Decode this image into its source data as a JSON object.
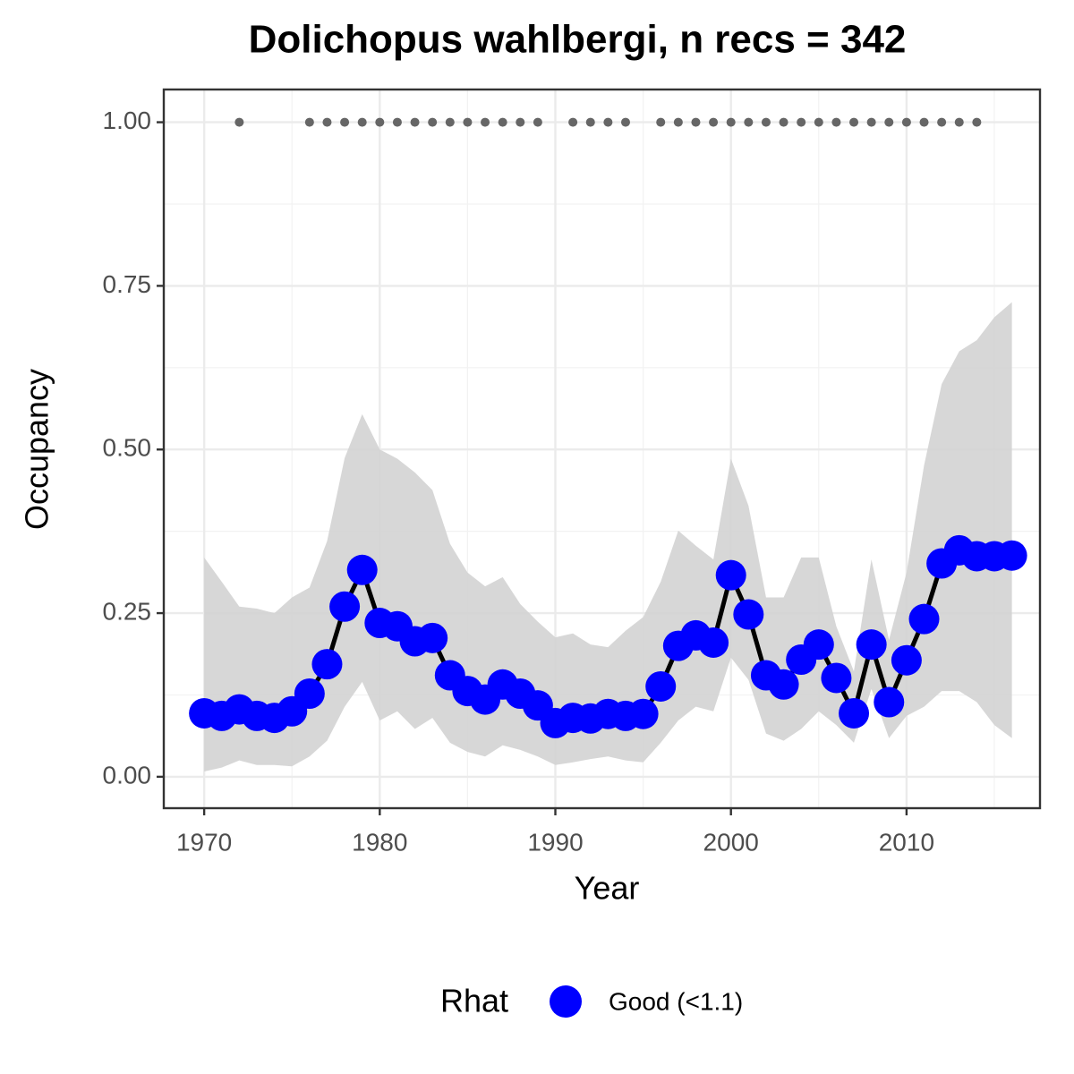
{
  "chart_data": {
    "type": "line",
    "title": "Dolichopus wahlbergi, n recs = 342",
    "x_label": "Year",
    "y_label": "Occupancy",
    "x": [
      1970,
      1971,
      1972,
      1973,
      1974,
      1975,
      1976,
      1977,
      1978,
      1979,
      1980,
      1981,
      1982,
      1983,
      1984,
      1985,
      1986,
      1987,
      1988,
      1989,
      1990,
      1991,
      1992,
      1993,
      1994,
      1995,
      1996,
      1997,
      1998,
      1999,
      2000,
      2001,
      2002,
      2003,
      2004,
      2005,
      2006,
      2007,
      2008,
      2009,
      2010,
      2011,
      2012,
      2013,
      2014,
      2015,
      2016
    ],
    "series": [
      {
        "name": "Good (<1.1)",
        "color": "#0000ff",
        "line_color": "#000000",
        "values": [
          0.097,
          0.093,
          0.103,
          0.093,
          0.09,
          0.1,
          0.127,
          0.172,
          0.26,
          0.316,
          0.235,
          0.23,
          0.207,
          0.212,
          0.155,
          0.131,
          0.118,
          0.141,
          0.127,
          0.109,
          0.082,
          0.09,
          0.089,
          0.096,
          0.093,
          0.096,
          0.138,
          0.2,
          0.216,
          0.205,
          0.308,
          0.248,
          0.155,
          0.141,
          0.179,
          0.202,
          0.151,
          0.097,
          0.202,
          0.114,
          0.178,
          0.241,
          0.326,
          0.346,
          0.337,
          0.337,
          0.338
        ],
        "lower": [
          0.008,
          0.014,
          0.025,
          0.018,
          0.018,
          0.016,
          0.031,
          0.055,
          0.107,
          0.145,
          0.086,
          0.1,
          0.073,
          0.09,
          0.052,
          0.038,
          0.031,
          0.048,
          0.041,
          0.031,
          0.018,
          0.022,
          0.027,
          0.031,
          0.025,
          0.022,
          0.052,
          0.086,
          0.107,
          0.1,
          0.182,
          0.148,
          0.066,
          0.055,
          0.073,
          0.1,
          0.079,
          0.052,
          0.134,
          0.059,
          0.093,
          0.107,
          0.131,
          0.131,
          0.114,
          0.079,
          0.059
        ],
        "upper": [
          0.335,
          0.298,
          0.26,
          0.257,
          0.25,
          0.274,
          0.289,
          0.36,
          0.487,
          0.554,
          0.5,
          0.486,
          0.465,
          0.438,
          0.356,
          0.312,
          0.291,
          0.305,
          0.264,
          0.237,
          0.213,
          0.219,
          0.202,
          0.198,
          0.223,
          0.244,
          0.298,
          0.376,
          0.353,
          0.332,
          0.486,
          0.414,
          0.274,
          0.274,
          0.335,
          0.335,
          0.23,
          0.161,
          0.332,
          0.209,
          0.312,
          0.476,
          0.6,
          0.65,
          0.667,
          0.702,
          0.725
        ]
      }
    ],
    "band_color": "#d3d3d3",
    "records": {
      "color": "#666666",
      "x": [
        1972,
        1976,
        1977,
        1978,
        1979,
        1980,
        1981,
        1982,
        1983,
        1984,
        1985,
        1986,
        1987,
        1988,
        1989,
        1991,
        1992,
        1993,
        1994,
        1996,
        1997,
        1998,
        1999,
        2000,
        2001,
        2002,
        2003,
        2004,
        2005,
        2006,
        2007,
        2008,
        2009,
        2010,
        2011,
        2012,
        2013,
        2014
      ],
      "values": [
        1,
        1,
        1,
        1,
        1,
        1,
        1,
        1,
        1,
        1,
        1,
        1,
        1,
        1,
        1,
        1,
        1,
        1,
        1,
        1,
        1,
        1,
        1,
        1,
        1,
        1,
        1,
        1,
        1,
        1,
        1,
        1,
        1,
        1,
        1,
        1,
        1,
        1
      ]
    },
    "xlim": [
      1967.7,
      2017.6
    ],
    "ylim": [
      -0.048,
      1.05
    ],
    "xticks": [
      1970,
      1980,
      1990,
      2000,
      2010
    ],
    "yticks": [
      {
        "value": 0,
        "label": "0.00"
      },
      {
        "value": 0.25,
        "label": "0.25"
      },
      {
        "value": 0.5,
        "label": "0.50"
      },
      {
        "value": 0.75,
        "label": "0.75"
      },
      {
        "value": 1,
        "label": "1.00"
      }
    ],
    "x_minor_ticks": [
      1975,
      1985,
      1995,
      2005,
      2015
    ],
    "y_minor_ticks": [
      0.125,
      0.375,
      0.625,
      0.875
    ],
    "grid": true,
    "legend_title": "Rhat",
    "legend_position": "bottom"
  }
}
